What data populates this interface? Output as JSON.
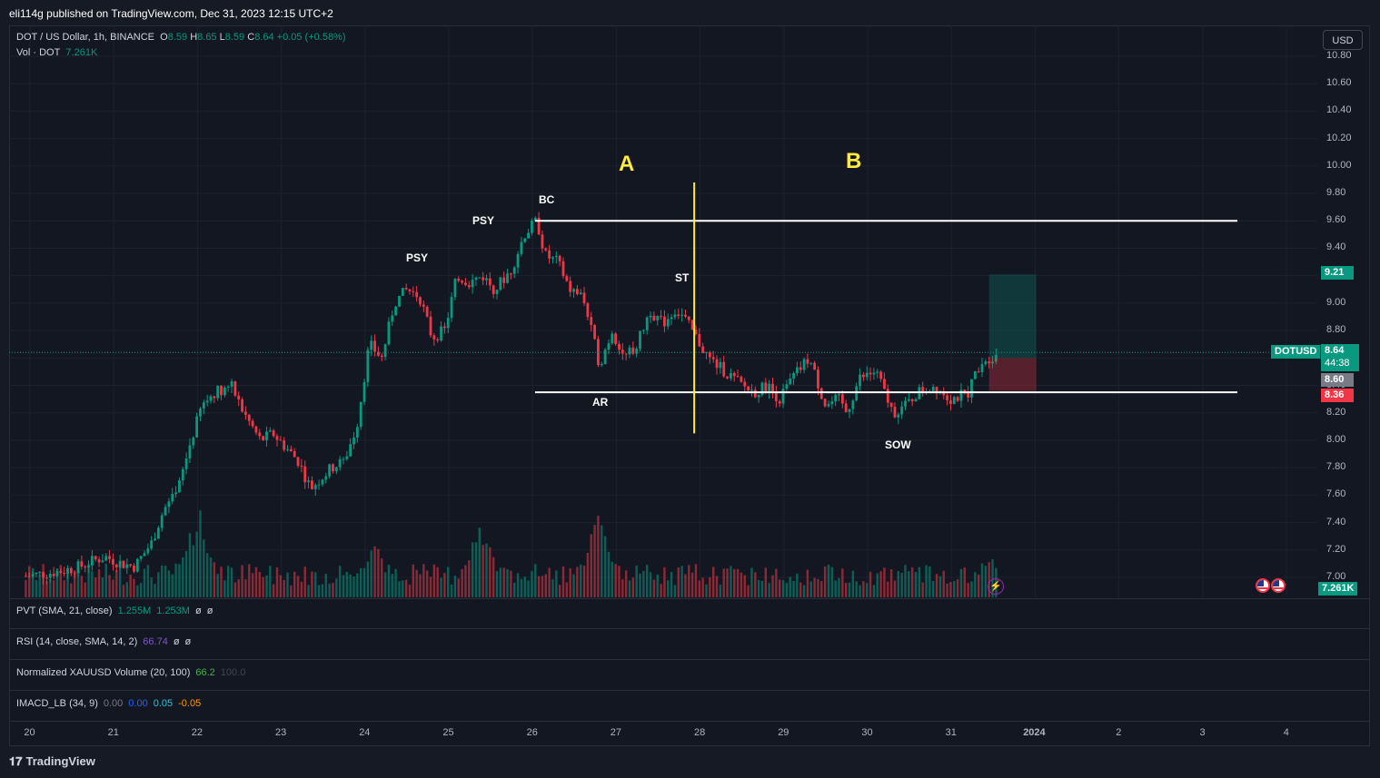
{
  "header": {
    "publish_text": "eli114g published on TradingView.com, Dec 31, 2023 12:15 UTC+2"
  },
  "symbol_legend": {
    "title": "DOT / US Dollar, 1h, BINANCE",
    "o_label": "O",
    "o_value": "8.59",
    "h_label": "H",
    "h_value": "8.65",
    "l_label": "L",
    "l_value": "8.59",
    "c_label": "C",
    "c_value": "8.64",
    "change": "+0.05 (+0.58%)"
  },
  "volume_legend": {
    "label": "Vol · DOT",
    "value": "7.261K"
  },
  "indicators": [
    {
      "name": "PVT (SMA, 21, close)",
      "values": [
        {
          "text": "1.255M",
          "color": "#089981"
        },
        {
          "text": "1.253M",
          "color": "#089981"
        },
        {
          "text": "ø",
          "color": "#d1d4dc"
        },
        {
          "text": "ø",
          "color": "#d1d4dc"
        }
      ]
    },
    {
      "name": "RSI (14, close, SMA, 14, 2)",
      "values": [
        {
          "text": "66.74",
          "color": "#7e57c2"
        },
        {
          "text": "ø",
          "color": "#d1d4dc"
        },
        {
          "text": "ø",
          "color": "#d1d4dc"
        }
      ]
    },
    {
      "name": "Normalized XAUUSD Volume (20, 100)",
      "values": [
        {
          "text": "66.2",
          "color": "#4caf50"
        },
        {
          "text": "100.0",
          "color": "#434651"
        }
      ]
    },
    {
      "name": "IMACD_LB (34, 9)",
      "values": [
        {
          "text": "0.00",
          "color": "#787b86"
        },
        {
          "text": "0.00",
          "color": "#2962ff"
        },
        {
          "text": "0.05",
          "color": "#26c6da"
        },
        {
          "text": "-0.05",
          "color": "#ff9800"
        }
      ]
    }
  ],
  "price_axis": {
    "currency_button": "USD",
    "ticks": [
      "10.80",
      "10.60",
      "10.40",
      "10.20",
      "10.00",
      "9.80",
      "9.60",
      "9.40",
      "9.20",
      "9.00",
      "8.80",
      "8.60",
      "8.40",
      "8.20",
      "8.00",
      "7.80",
      "7.60",
      "7.40",
      "7.20",
      "7.00"
    ],
    "tags": {
      "target": "9.21",
      "symbol": "DOTUSD",
      "last_price": "8.64",
      "countdown": "44:38",
      "entry": "8.60",
      "stop": "8.36",
      "volume": "7.261K"
    }
  },
  "time_axis": {
    "labels": [
      "20",
      "21",
      "22",
      "23",
      "24",
      "25",
      "26",
      "27",
      "28",
      "29",
      "30",
      "31",
      "2024",
      "2",
      "3",
      "4"
    ]
  },
  "annotations": {
    "psy1": "PSY",
    "psy2": "PSY",
    "bc": "BC",
    "st": "ST",
    "ar": "AR",
    "sow": "SOW",
    "phase_a": "A",
    "phase_b": "B"
  },
  "colors": {
    "background": "#131722",
    "up": "#089981",
    "down": "#f23645",
    "phase_line": "#ffeb3b",
    "range_line": "#ffffff"
  },
  "chart_data": {
    "type": "candlestick",
    "symbol": "DOTUSD",
    "interval": "1h",
    "ylim": [
      7.0,
      10.8
    ],
    "range_top": 9.6,
    "range_bottom": 8.35,
    "trade": {
      "entry": 8.6,
      "target": 9.21,
      "stop": 8.36,
      "last": 8.64
    },
    "days": [
      "20",
      "21",
      "22",
      "23",
      "24",
      "25",
      "26",
      "27",
      "28",
      "29",
      "30",
      "31"
    ],
    "path_days": [
      19.95,
      20.2,
      20.4,
      20.6,
      20.75,
      20.9,
      21.1,
      21.25,
      21.45,
      21.6,
      21.75,
      21.9,
      22.05,
      22.2,
      22.4,
      22.55,
      22.75,
      22.9,
      23.05,
      23.2,
      23.35,
      23.6,
      23.75,
      23.9,
      24.05,
      24.2,
      24.35,
      24.5,
      24.65,
      24.8,
      24.95,
      25.1,
      25.25,
      25.4,
      25.55,
      25.75,
      25.9,
      26.05,
      26.15,
      26.3,
      26.45,
      26.6,
      26.8,
      26.95,
      27.1,
      27.25,
      27.4,
      27.55,
      27.7,
      27.8,
      27.95,
      28.1,
      28.3,
      28.5,
      28.65,
      28.8,
      28.95,
      29.1,
      29.3,
      29.5,
      29.65,
      29.75,
      29.9,
      30.1,
      30.3,
      30.45,
      30.6,
      30.8,
      31.0,
      31.2,
      31.35,
      31.45,
      31.55
    ],
    "path_prices": [
      7.01,
      7.03,
      7.05,
      7.08,
      7.12,
      7.15,
      7.1,
      7.08,
      7.25,
      7.5,
      7.6,
      7.95,
      8.25,
      8.35,
      8.4,
      8.2,
      8.0,
      8.05,
      7.95,
      7.85,
      7.65,
      7.8,
      7.85,
      8.1,
      8.7,
      8.6,
      9.0,
      9.1,
      9.05,
      8.75,
      8.8,
      9.2,
      9.15,
      9.2,
      9.1,
      9.25,
      9.5,
      9.6,
      9.35,
      9.3,
      9.1,
      9.05,
      8.55,
      8.8,
      8.6,
      8.7,
      8.95,
      8.85,
      8.95,
      8.9,
      8.75,
      8.6,
      8.5,
      8.4,
      8.35,
      8.4,
      8.3,
      8.45,
      8.6,
      8.25,
      8.3,
      8.2,
      8.45,
      8.5,
      8.2,
      8.25,
      8.35,
      8.4,
      8.3,
      8.35,
      8.58,
      8.6,
      8.64
    ],
    "volume_peaks": [
      {
        "day": 22.0,
        "level": 1.0
      },
      {
        "day": 25.35,
        "level": 0.85
      },
      {
        "day": 26.8,
        "level": 0.95
      },
      {
        "day": 24.1,
        "level": 0.7
      },
      {
        "day": 31.45,
        "level": 0.5
      }
    ]
  }
}
